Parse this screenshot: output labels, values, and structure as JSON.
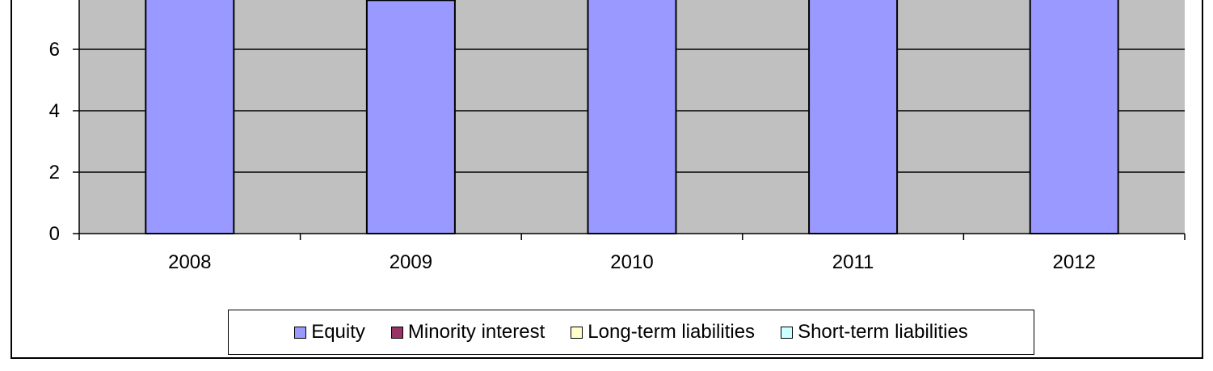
{
  "chart_data": {
    "type": "bar",
    "stacked": true,
    "categories": [
      "2008",
      "2009",
      "2010",
      "2011",
      "2012"
    ],
    "series": [
      {
        "name": "Equity",
        "values": [
          8.6,
          7.6,
          8.6,
          8.6,
          8.6
        ]
      },
      {
        "name": "Minority interest",
        "values": [
          0,
          0.05,
          0,
          0,
          0
        ]
      },
      {
        "name": "Long-term liabilities",
        "values": [
          0,
          0,
          0,
          0,
          0
        ]
      },
      {
        "name": "Short-term liabilities",
        "values": [
          0,
          0,
          0,
          0,
          0
        ]
      }
    ],
    "y_ticks": [
      "0",
      "2",
      "4",
      "6"
    ],
    "ylim": [
      0,
      7.8
    ],
    "grid": true,
    "legend_position": "bottom"
  },
  "colors": {
    "plot_background": "#c0c0c0",
    "equity": "#9999ff",
    "minority_interest": "#993366",
    "long_term_liabilities": "#ffffcc",
    "short_term_liabilities": "#ccffff"
  }
}
